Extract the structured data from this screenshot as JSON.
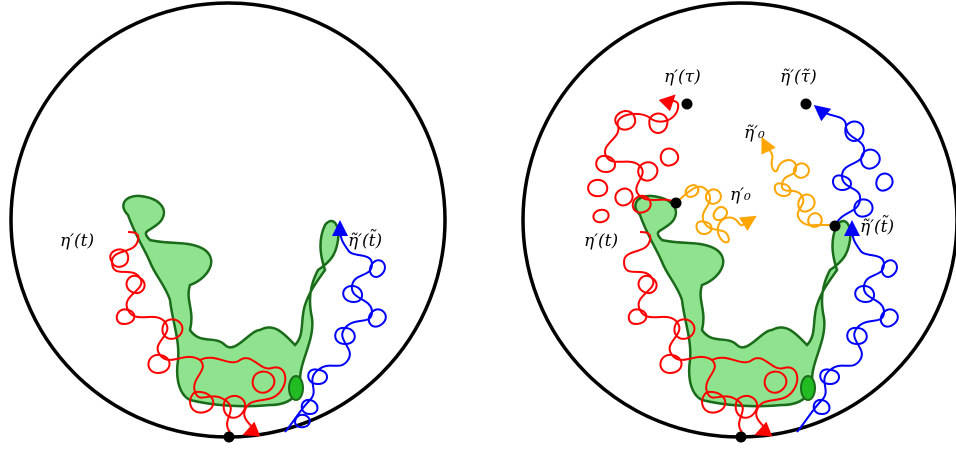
{
  "colors": {
    "boundary": "#000000",
    "eta": "#ff0000",
    "eta_tilde": "#0000ff",
    "eta_zero": "#ffa500",
    "hull_fill": "#8fe38f",
    "hull_stroke": "#1a6b1a",
    "inner_blob": "#22bb22"
  },
  "left_panel": {
    "label_eta": "η′(t)",
    "label_eta_tilde": "η̃′(t̃)"
  },
  "right_panel": {
    "label_eta_tau": "η′(τ)",
    "label_eta_tilde_tau": "η̃′(τ̃)",
    "label_eta_tilde_zero": "η̃′₀",
    "label_eta_zero": "η′₀",
    "label_eta": "η′(t)",
    "label_eta_tilde": "η̃′(t̃)"
  }
}
